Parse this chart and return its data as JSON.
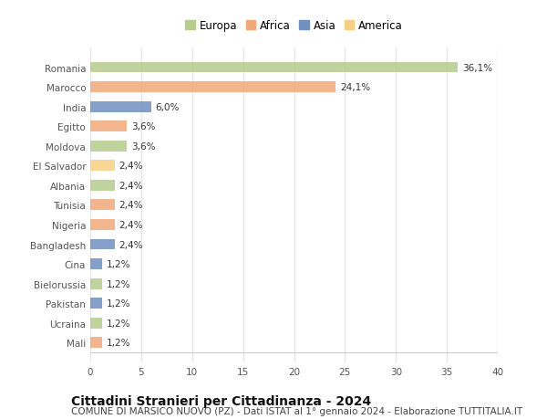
{
  "countries": [
    "Romania",
    "Marocco",
    "India",
    "Egitto",
    "Moldova",
    "El Salvador",
    "Albania",
    "Tunisia",
    "Nigeria",
    "Bangladesh",
    "Cina",
    "Bielorussia",
    "Pakistan",
    "Ucraina",
    "Mali"
  ],
  "values": [
    36.1,
    24.1,
    6.0,
    3.6,
    3.6,
    2.4,
    2.4,
    2.4,
    2.4,
    2.4,
    1.2,
    1.2,
    1.2,
    1.2,
    1.2
  ],
  "labels": [
    "36,1%",
    "24,1%",
    "6,0%",
    "3,6%",
    "3,6%",
    "2,4%",
    "2,4%",
    "2,4%",
    "2,4%",
    "2,4%",
    "1,2%",
    "1,2%",
    "1,2%",
    "1,2%",
    "1,2%"
  ],
  "continents": [
    "Europa",
    "Africa",
    "Asia",
    "Africa",
    "Europa",
    "America",
    "Europa",
    "Africa",
    "Africa",
    "Asia",
    "Asia",
    "Europa",
    "Asia",
    "Europa",
    "Africa"
  ],
  "continent_colors": {
    "Europa": "#b5cc8e",
    "Africa": "#f0a87a",
    "Asia": "#7090c0",
    "America": "#f5d080"
  },
  "legend_order": [
    "Europa",
    "Africa",
    "Asia",
    "America"
  ],
  "title": "Cittadini Stranieri per Cittadinanza - 2024",
  "subtitle": "COMUNE DI MARSICO NUOVO (PZ) - Dati ISTAT al 1° gennaio 2024 - Elaborazione TUTTITALIA.IT",
  "xlim": [
    0,
    40
  ],
  "xticks": [
    0,
    5,
    10,
    15,
    20,
    25,
    30,
    35,
    40
  ],
  "background_color": "#ffffff",
  "grid_color": "#e8e8e8",
  "bar_height": 0.55,
  "title_fontsize": 10,
  "subtitle_fontsize": 7.5,
  "label_fontsize": 7.5,
  "tick_fontsize": 7.5,
  "legend_fontsize": 8.5
}
